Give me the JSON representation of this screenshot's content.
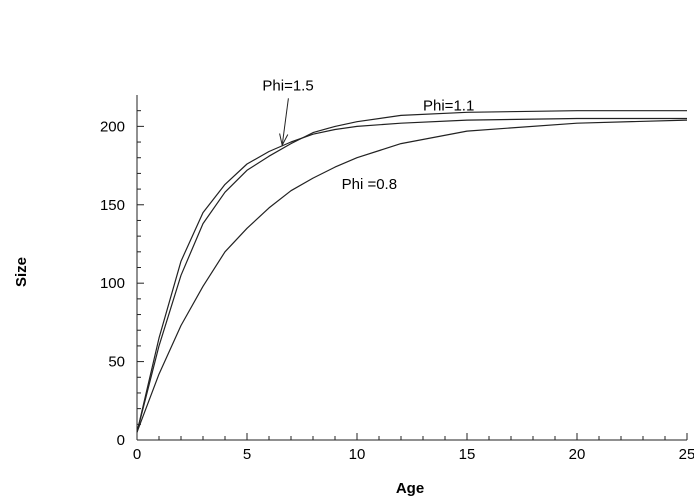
{
  "chart_data": {
    "type": "line",
    "title": "",
    "xlabel": "Age",
    "ylabel": "Size",
    "xlim": [
      0,
      25
    ],
    "ylim": [
      0,
      220
    ],
    "xticks": [
      0,
      5,
      10,
      15,
      20,
      25
    ],
    "yticks": [
      0,
      50,
      100,
      150,
      200
    ],
    "grid": false,
    "legend": "none",
    "line_color": "#222222",
    "series": [
      {
        "x": [
          0,
          1,
          2,
          3,
          4,
          5,
          6,
          7,
          8,
          9,
          10,
          12,
          15,
          20,
          25
        ],
        "y": [
          5,
          65,
          114,
          145,
          163,
          176,
          184,
          190,
          195,
          198,
          200,
          202,
          204,
          205,
          205
        ]
      },
      {
        "x": [
          0,
          1,
          2,
          3,
          4,
          5,
          6,
          7,
          8,
          9,
          10,
          12,
          15,
          20,
          25
        ],
        "y": [
          5,
          60,
          105,
          138,
          158,
          172,
          181,
          189,
          196,
          200,
          203,
          207,
          209,
          210,
          210
        ]
      },
      {
        "x": [
          0,
          1,
          2,
          3,
          4,
          5,
          6,
          7,
          8,
          9,
          10,
          12,
          15,
          20,
          25
        ],
        "y": [
          5,
          42,
          73,
          98,
          120,
          135,
          148,
          159,
          167,
          174,
          180,
          189,
          197,
          202,
          204
        ]
      }
    ],
    "annotations": [
      {
        "text": "Phi=1.5",
        "x": 5.7,
        "y": 223,
        "arrow_to": [
          6.6,
          188
        ]
      },
      {
        "text": "Phi=1.1",
        "x": 13.0,
        "y": 210
      },
      {
        "text": "Phi =0.8",
        "x": 9.3,
        "y": 160
      }
    ]
  }
}
